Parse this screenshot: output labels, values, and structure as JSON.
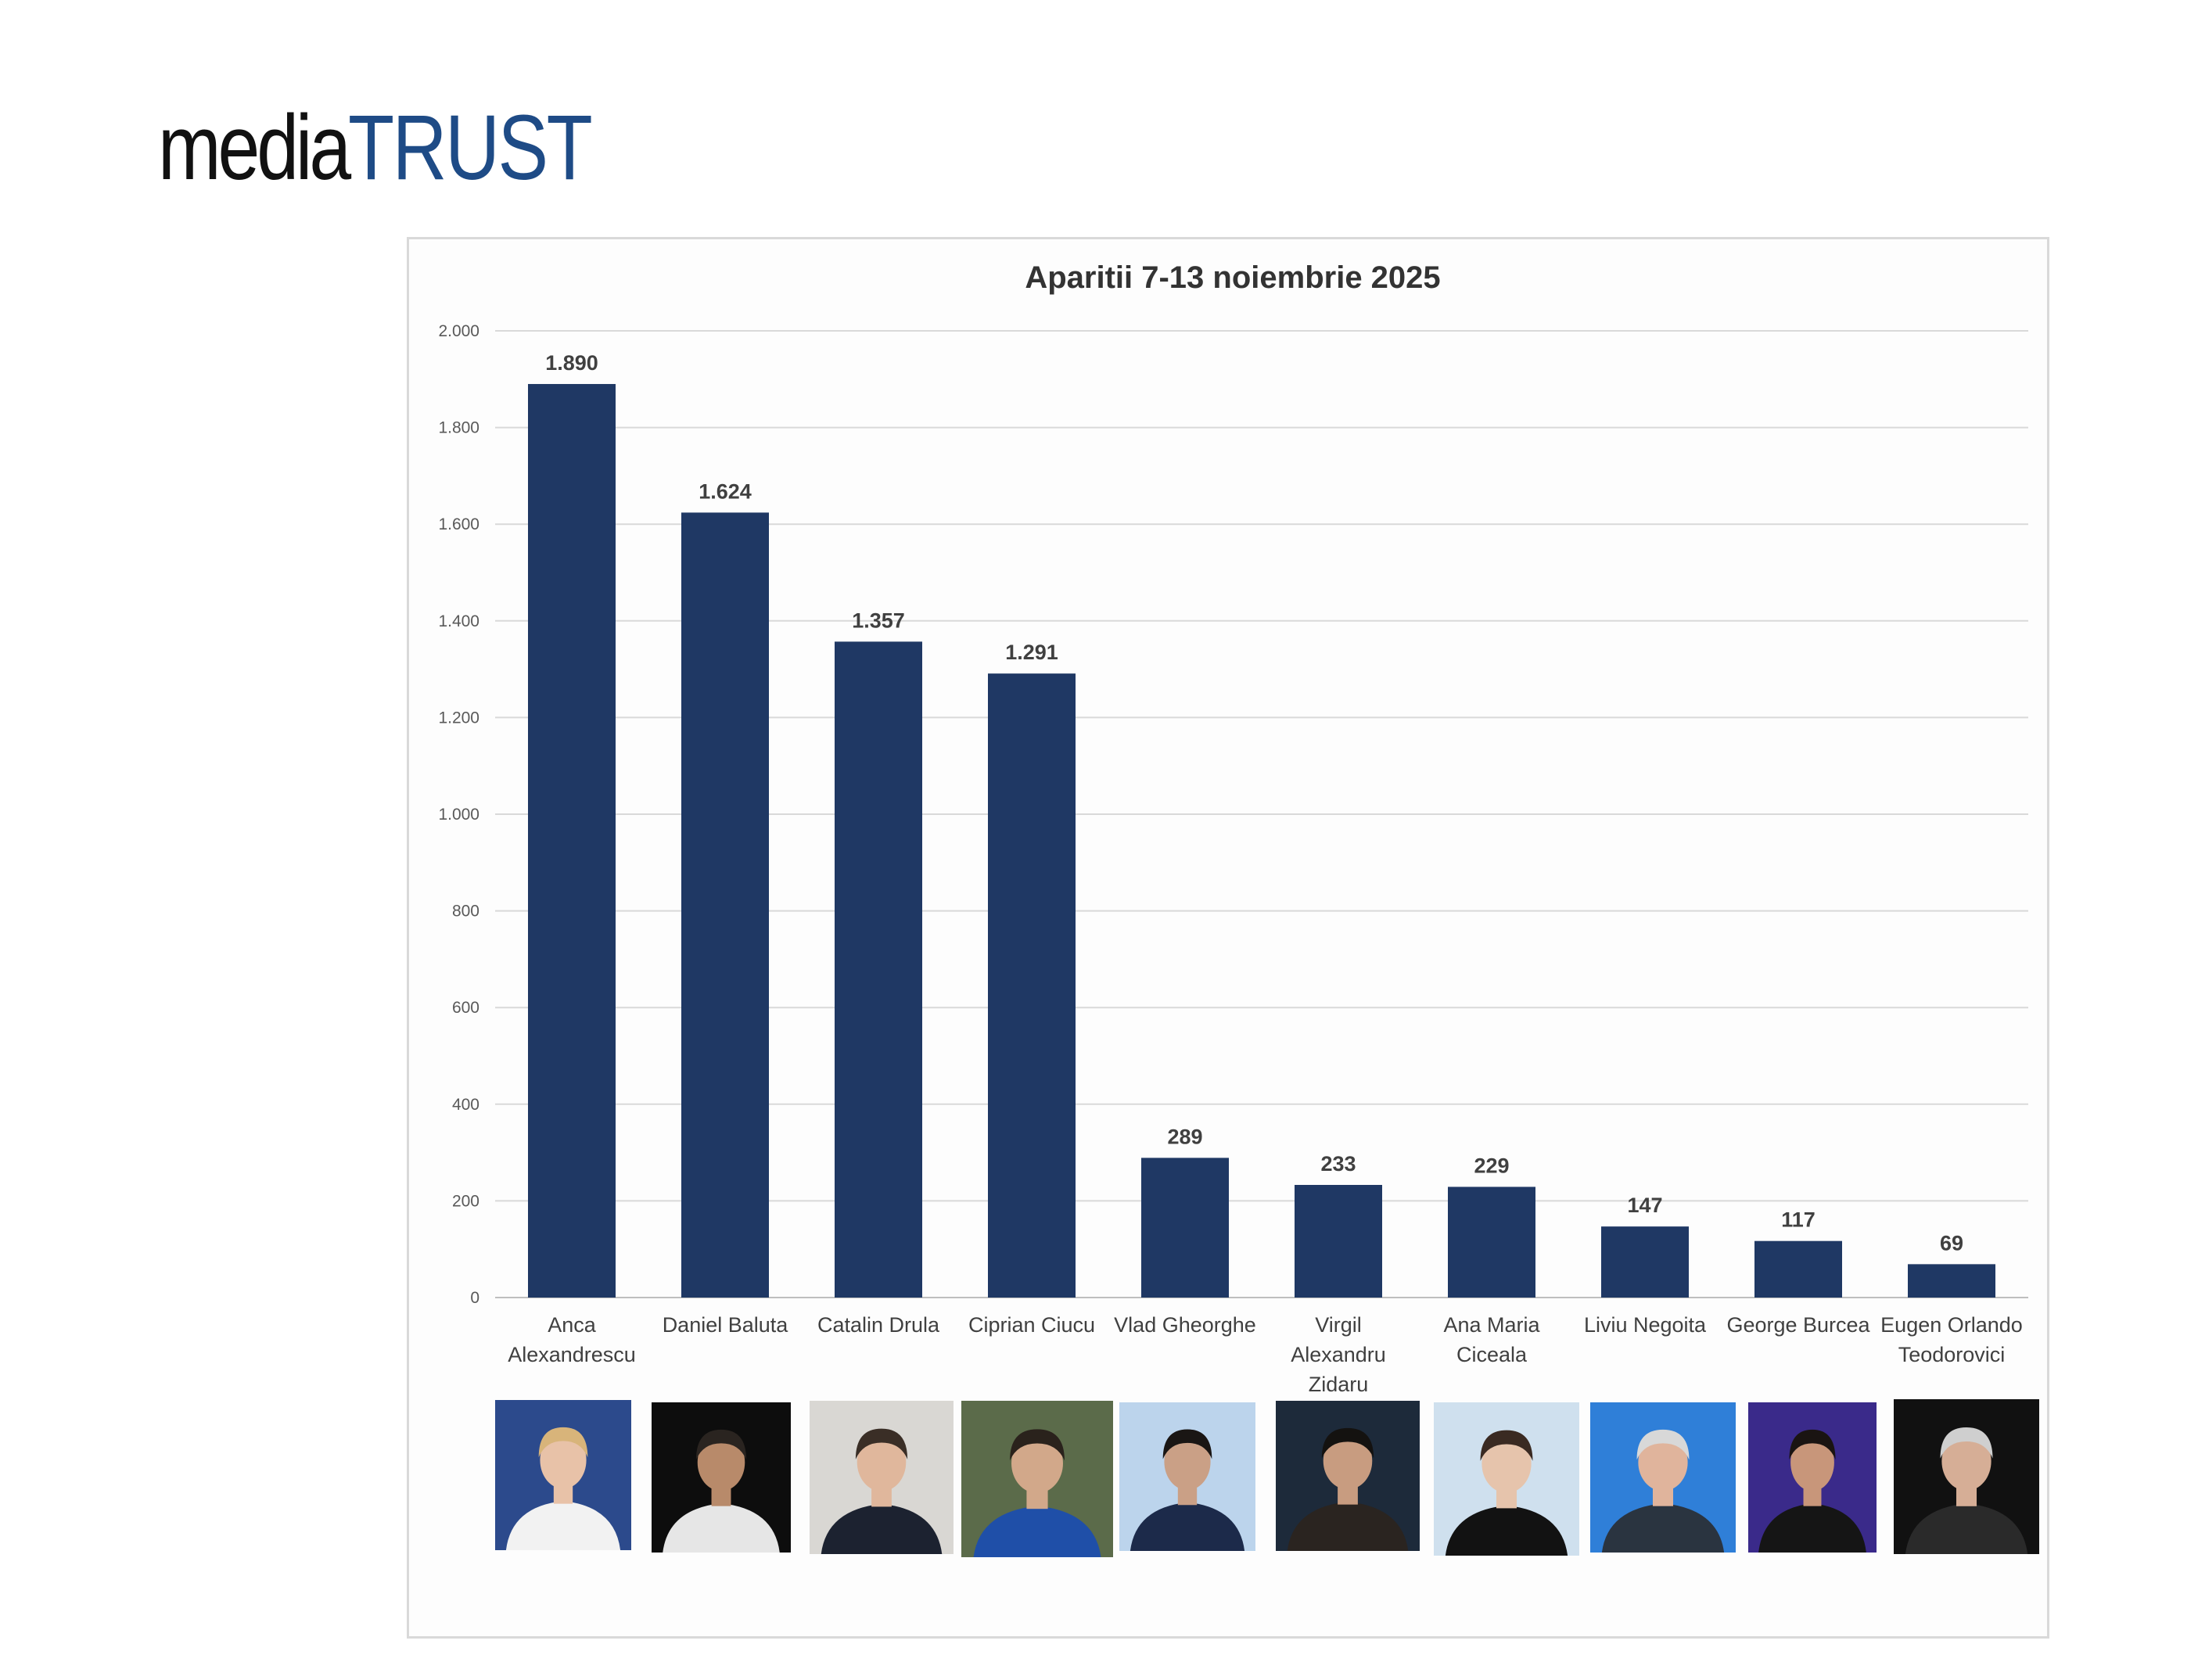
{
  "logo": {
    "part1": "media",
    "part2": "TRUST"
  },
  "chart_data": {
    "type": "bar",
    "title": "Aparitii 7-13 noiembrie 2025",
    "xlabel": "",
    "ylabel": "",
    "ylim": [
      0,
      2000
    ],
    "yticks": [
      0,
      200,
      400,
      600,
      800,
      1000,
      1200,
      1400,
      1600,
      1800,
      2000
    ],
    "ytick_labels": [
      "0",
      "200",
      "400",
      "600",
      "800",
      "1.000",
      "1.200",
      "1.400",
      "1.600",
      "1.800",
      "2.000"
    ],
    "grid": true,
    "bar_color": "#1f3864",
    "categories": [
      [
        "Anca",
        "Alexandrescu"
      ],
      [
        "Daniel Baluta"
      ],
      [
        "Catalin Drula"
      ],
      [
        "Ciprian Ciucu"
      ],
      [
        "Vlad Gheorghe"
      ],
      [
        "Virgil",
        "Alexandru",
        "Zidaru"
      ],
      [
        "Ana Maria",
        "Ciceala"
      ],
      [
        "Liviu Negoita"
      ],
      [
        "George Burcea"
      ],
      [
        "Eugen Orlando",
        "Teodorovici"
      ]
    ],
    "values": [
      1890,
      1624,
      1357,
      1291,
      289,
      233,
      229,
      147,
      117,
      69
    ],
    "data_labels": [
      "1.890",
      "1.624",
      "1.357",
      "1.291",
      "289",
      "233",
      "229",
      "147",
      "117",
      "69"
    ]
  },
  "photo_palette": [
    {
      "bg": "#2c4a8c",
      "shirt": "#f2f2f2",
      "skin": "#e8c2a8",
      "hair": "#d8b47a"
    },
    {
      "bg": "#0d0d0d",
      "shirt": "#e6e6e6",
      "skin": "#b88a6a",
      "hair": "#2a2420"
    },
    {
      "bg": "#d9d7d3",
      "shirt": "#1c2230",
      "skin": "#e0b79c",
      "hair": "#3a2e26"
    },
    {
      "bg": "#5b6b4a",
      "shirt": "#1f4fa8",
      "skin": "#d2a88a",
      "hair": "#2a221c"
    },
    {
      "bg": "#bcd4ec",
      "shirt": "#1c2a4a",
      "skin": "#caa086",
      "hair": "#1a1614"
    },
    {
      "bg": "#1d2a3a",
      "shirt": "#2a2420",
      "skin": "#c89c80",
      "hair": "#141210"
    },
    {
      "bg": "#cfe0ee",
      "shirt": "#121212",
      "skin": "#e6c4ac",
      "hair": "#3a2a22"
    },
    {
      "bg": "#2f7fd8",
      "shirt": "#2a3440",
      "skin": "#e0b49c",
      "hair": "#d8d8d8"
    },
    {
      "bg": "#3a2a8a",
      "shirt": "#151515",
      "skin": "#c8967a",
      "hair": "#1a1412"
    },
    {
      "bg": "#111111",
      "shirt": "#2a2a2a",
      "skin": "#d6ae96",
      "hair": "#cfcfcf"
    }
  ]
}
